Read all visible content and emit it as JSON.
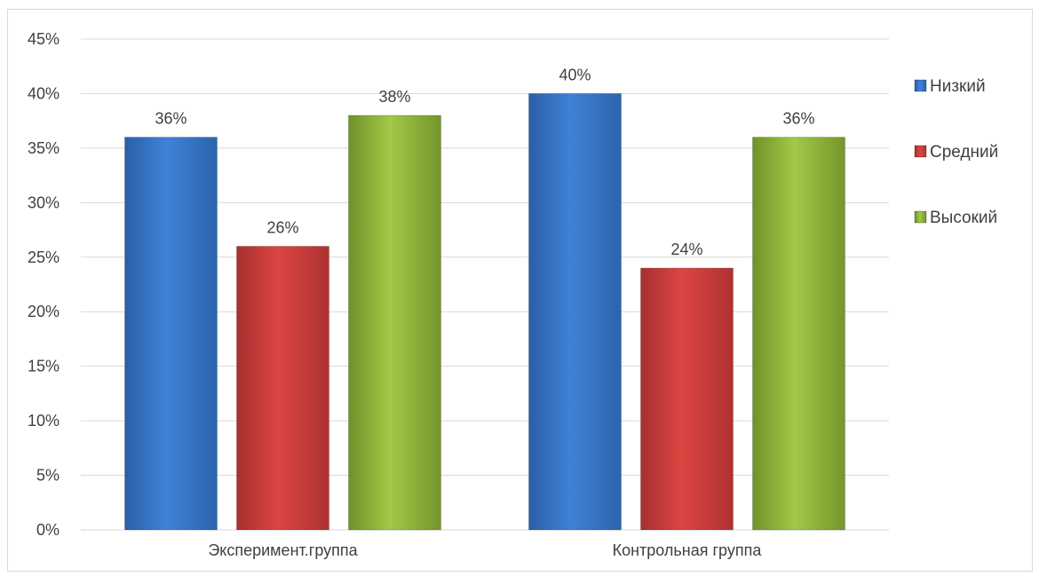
{
  "chart_data": {
    "type": "bar",
    "categories": [
      "Эксперимент.группа",
      "Контрольная группа"
    ],
    "series": [
      {
        "name": "Низкий",
        "values": [
          36,
          40
        ],
        "color": "#3a78c9"
      },
      {
        "name": "Средний",
        "values": [
          26,
          24
        ],
        "color": "#cc3c3a"
      },
      {
        "name": "Высокий",
        "values": [
          38,
          36
        ],
        "color": "#8fb53b"
      }
    ],
    "ylim": [
      0,
      45
    ],
    "yticks": [
      0,
      5,
      10,
      15,
      20,
      25,
      30,
      35,
      40,
      45
    ],
    "value_suffix": "%",
    "grid": true,
    "legend_position": "right"
  }
}
